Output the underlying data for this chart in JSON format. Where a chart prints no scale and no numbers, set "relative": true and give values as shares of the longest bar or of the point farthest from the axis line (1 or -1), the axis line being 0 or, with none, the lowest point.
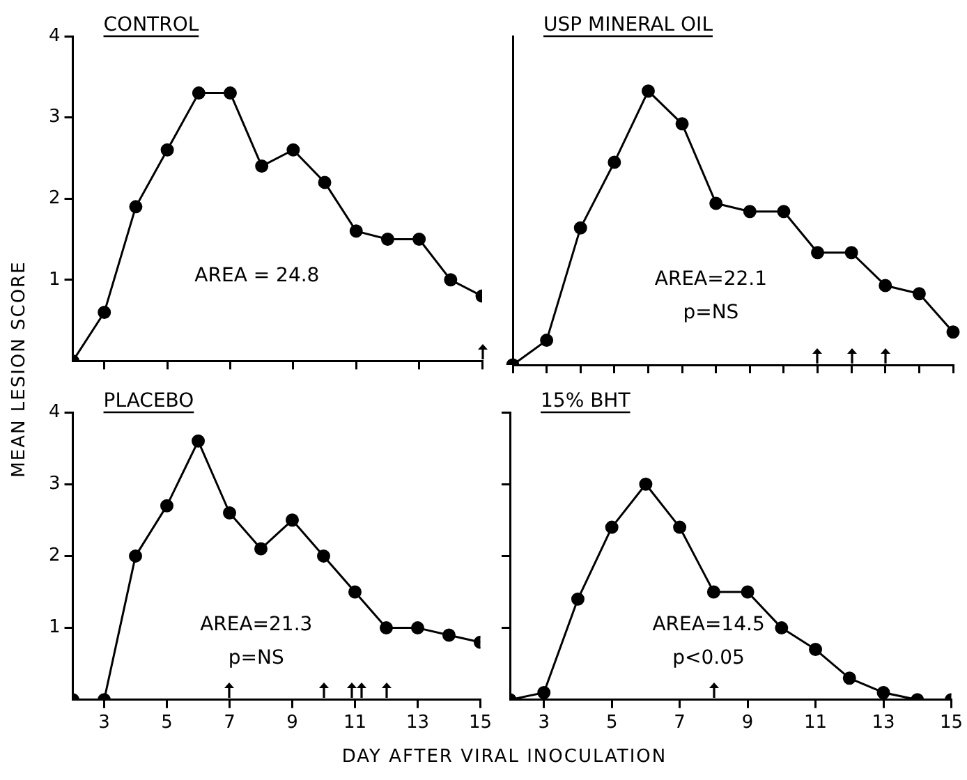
{
  "chart_data": [
    {
      "type": "line",
      "title": "CONTROL",
      "ylabel": "MEAN LESION SCORE",
      "x": [
        2,
        3,
        4,
        5,
        6,
        7,
        8,
        9,
        10,
        11,
        12,
        13,
        14,
        15
      ],
      "values": [
        0,
        0.6,
        1.9,
        2.6,
        3.3,
        3.3,
        2.4,
        2.6,
        2.2,
        1.6,
        1.5,
        1.5,
        1.0,
        0.8
      ],
      "color": "#000000",
      "marker": "circle",
      "xlim": [
        2,
        15
      ],
      "xticks": [
        3,
        5,
        7,
        9,
        11,
        13,
        15
      ],
      "ylim": [
        0,
        4
      ],
      "yticks": [
        1,
        2,
        3,
        4
      ],
      "tick_labels": "y",
      "grid": false,
      "legend": false,
      "annotations": [
        "AREA = 24.8"
      ]
    },
    {
      "type": "line",
      "title": "USP MINERAL OIL",
      "relative": true,
      "categories": [
        null,
        null,
        null,
        null,
        null,
        null,
        null,
        null,
        null,
        null,
        null,
        null,
        null,
        null
      ],
      "values": [
        0,
        0.09,
        0.5,
        0.74,
        1,
        0.88,
        0.59,
        0.56,
        0.56,
        0.41,
        0.41,
        0.29,
        0.26,
        0.12
      ],
      "color": "#000000",
      "marker": "circle",
      "grid": false,
      "legend": false,
      "annotations": [
        "AREA=22.1",
        "p=NS"
      ]
    },
    {
      "type": "line",
      "title": "PLACEBO",
      "xlabel": "DAY AFTER VIRAL INOCULATION",
      "x": [
        2,
        3,
        4,
        5,
        6,
        7,
        8,
        9,
        10,
        11,
        12,
        13,
        14,
        15
      ],
      "values": [
        0,
        0,
        2.0,
        2.7,
        3.6,
        2.6,
        2.1,
        2.5,
        2.0,
        1.5,
        1.0,
        1.0,
        0.9,
        0.8
      ],
      "color": "#000000",
      "marker": "circle",
      "xlim": [
        2,
        15
      ],
      "xticks": [
        3,
        5,
        7,
        9,
        11,
        13,
        15
      ],
      "ylim": [
        0,
        4
      ],
      "yticks": [
        1,
        2,
        3,
        4
      ],
      "grid": false,
      "legend": false,
      "annotations": [
        "AREA=21.3",
        "p=NS"
      ]
    },
    {
      "type": "line",
      "title": "15% BHT",
      "x": [
        2,
        3,
        4,
        5,
        6,
        7,
        8,
        9,
        10,
        11,
        12,
        13,
        14,
        15
      ],
      "values": [
        0,
        0.1,
        1.4,
        2.4,
        3.0,
        2.4,
        1.5,
        1.5,
        1.0,
        0.7,
        0.3,
        0.1,
        0.0,
        0.0
      ],
      "color": "#000000",
      "marker": "circle",
      "xlim": [
        2,
        15
      ],
      "xticks": [
        3,
        5,
        7,
        9,
        11,
        13,
        15
      ],
      "ylim": [
        0,
        4
      ],
      "yticks": [
        1,
        2,
        3,
        4
      ],
      "tick_labels": "x",
      "grid": false,
      "legend": false,
      "annotations": [
        "AREA=14.5",
        "p<0.05"
      ]
    }
  ]
}
